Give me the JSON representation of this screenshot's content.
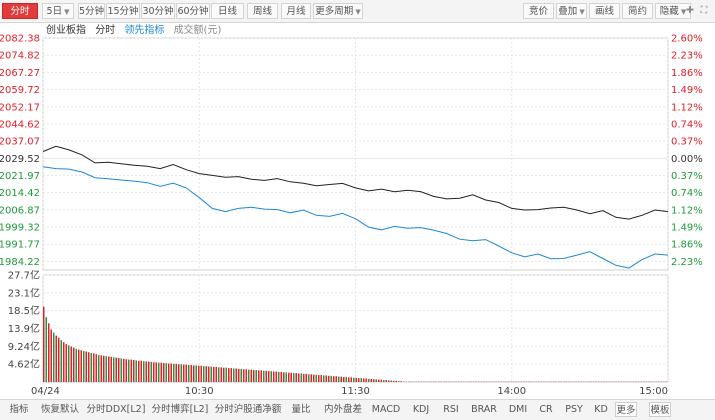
{
  "toolbar": {
    "left": [
      {
        "label": "分时",
        "active": true
      },
      {
        "label": "5日",
        "dropdown": true
      },
      {
        "label": "5分钟"
      },
      {
        "label": "15分钟"
      },
      {
        "label": "30分钟"
      },
      {
        "label": "60分钟"
      },
      {
        "label": "日线"
      },
      {
        "label": "周线"
      },
      {
        "label": "月线"
      },
      {
        "label": "更多周期",
        "dropdown": true
      }
    ],
    "right": [
      {
        "label": "竞价"
      },
      {
        "label": "叠加",
        "dropdown": true
      },
      {
        "label": "画线"
      },
      {
        "label": "简约"
      },
      {
        "label": "隐藏",
        "dropdown": true
      }
    ],
    "icons": [
      "expand-icon",
      "fullscreen-icon"
    ]
  },
  "legend": {
    "name": "创业板指",
    "mode": "分时",
    "lead": "领先指标",
    "volume": "成交额(元)"
  },
  "colors": {
    "up": "#e0202a",
    "down": "#1f9a3a",
    "neutral": "#333333",
    "price_line": "#222222",
    "lead_line": "#1e88d6",
    "grid": "#e6e6e6"
  },
  "chart_data": {
    "type": "line",
    "title": "创业板指",
    "prev_close": 2029.52,
    "y_ticks": [
      "2082.38",
      "2074.82",
      "2067.27",
      "2059.72",
      "2052.17",
      "2044.62",
      "2037.07",
      "2029.52",
      "2021.97",
      "2014.42",
      "2006.87",
      "1999.32",
      "1991.77",
      "1984.22"
    ],
    "pct_ticks": [
      "2.60%",
      "2.23%",
      "1.86%",
      "1.49%",
      "1.12%",
      "0.74%",
      "0.37%",
      "0.00%",
      "0.37%",
      "0.74%",
      "1.12%",
      "1.49%",
      "1.86%",
      "2.23%"
    ],
    "ylim": [
      1980.45,
      2082.38
    ],
    "x_ticks": [
      "04/24",
      "10:30",
      "11:30",
      "14:00",
      "15:00"
    ],
    "x": [
      0,
      5,
      10,
      15,
      20,
      25,
      30,
      35,
      40,
      45,
      50,
      55,
      60,
      65,
      70,
      75,
      80,
      85,
      90,
      95,
      100,
      105,
      110,
      115,
      120,
      125,
      130,
      135,
      140,
      145,
      150,
      155,
      160,
      165,
      170,
      175,
      180,
      185,
      190,
      195,
      200,
      205,
      210,
      215,
      220,
      225,
      230,
      235,
      240
    ],
    "series": [
      {
        "name": "创业板指",
        "values": [
          2032.5,
          2034.8,
          2033.2,
          2031.0,
          2027.5,
          2027.8,
          2027.1,
          2026.5,
          2026.0,
          2025.0,
          2026.8,
          2024.5,
          2022.8,
          2022.0,
          2021.2,
          2021.5,
          2020.3,
          2019.8,
          2020.6,
          2019.2,
          2018.6,
          2017.5,
          2018.0,
          2018.5,
          2016.5,
          2015.2,
          2016.0,
          2014.8,
          2015.5,
          2014.9,
          2012.8,
          2011.7,
          2012.0,
          2013.5,
          2011.2,
          2010.1,
          2007.5,
          2006.8,
          2007.0,
          2007.7,
          2008.0,
          2006.8,
          2005.2,
          2006.5,
          2003.6,
          2002.8,
          2004.5,
          2006.8,
          2006.1
        ]
      },
      {
        "name": "领先指标",
        "values": [
          2025.8,
          2025.0,
          2024.8,
          2023.5,
          2021.0,
          2020.5,
          2020.0,
          2019.5,
          2018.8,
          2017.2,
          2018.6,
          2016.5,
          2012.2,
          2007.5,
          2006.1,
          2007.5,
          2008.0,
          2007.2,
          2007.0,
          2005.6,
          2006.8,
          2004.5,
          2004.0,
          2005.3,
          2003.0,
          1999.3,
          1998.1,
          1999.6,
          1998.8,
          1999.1,
          1998.0,
          1996.5,
          1994.0,
          1993.3,
          1993.8,
          1991.0,
          1988.0,
          1986.2,
          1987.5,
          1985.4,
          1985.5,
          1987.0,
          1988.5,
          1985.5,
          1982.5,
          1981.3,
          1985.0,
          1987.5,
          1987.0
        ]
      }
    ],
    "volume": {
      "ylabel": "成交额(元)",
      "y_ticks": [
        "27.7亿",
        "23.1亿",
        "18.5亿",
        "13.9亿",
        "9.24亿",
        "4.62亿"
      ],
      "ylim": [
        0,
        27.7
      ],
      "unit": "亿",
      "values": [
        19.5,
        16.8,
        15.2,
        13.6,
        12.8,
        12.0,
        11.5,
        10.8,
        10.3,
        9.8,
        9.5,
        9.2,
        8.9,
        8.6,
        8.4,
        8.2,
        8.0,
        7.9,
        7.7,
        7.5,
        7.4,
        7.2,
        7.0,
        6.9,
        6.8,
        6.7,
        6.6,
        6.5,
        6.4,
        6.3,
        6.2,
        6.1,
        6.0,
        5.9,
        5.8,
        5.8,
        5.7,
        5.6,
        5.5,
        5.5,
        5.4,
        5.3,
        5.3,
        5.2,
        5.1,
        5.1,
        5.0,
        5.0,
        4.9,
        4.9,
        4.8,
        4.8,
        4.7,
        4.7,
        4.6,
        4.6,
        4.5,
        4.5,
        4.4,
        4.4,
        4.3,
        4.3,
        4.2,
        4.2,
        4.1,
        4.1,
        4.0,
        4.0,
        3.9,
        3.9,
        3.8,
        3.8,
        3.7,
        3.7,
        3.6,
        3.6,
        3.5,
        3.5,
        3.4,
        3.4,
        3.3,
        3.3,
        3.2,
        3.2,
        3.1,
        3.1,
        3.0,
        3.0,
        2.9,
        2.9,
        2.8,
        2.8,
        2.7,
        2.7,
        2.6,
        2.6,
        2.5,
        2.5,
        2.4,
        2.4,
        2.3,
        2.3,
        2.2,
        2.2,
        2.1,
        2.1,
        2.0,
        2.0,
        1.9,
        1.9,
        1.8,
        1.8,
        1.7,
        1.7,
        1.6,
        1.6,
        1.5,
        1.5,
        1.4,
        1.4,
        1.3,
        1.3,
        1.2,
        1.2,
        1.1,
        1.1,
        1.0,
        1.0,
        0.9,
        0.9,
        0.8,
        0.8,
        0.7,
        0.7,
        0.6,
        0.6,
        0.5,
        0.5,
        0.4,
        0.4,
        0.3,
        0.3,
        0.2,
        0.2,
        0.1,
        0.1,
        0.1,
        0.1,
        0.1,
        0.1,
        0.1,
        0.1,
        0.1,
        0.1,
        0.1,
        0.1,
        0.1,
        0.1,
        0.1,
        0.1,
        0.1,
        0.1,
        0.1,
        0.1,
        0.1,
        0.1,
        0.1,
        0.1,
        0.1,
        0.1,
        0.1,
        0.1,
        0.1,
        0.1,
        0.1,
        0.1,
        0.1,
        0.1,
        0.1,
        0.1,
        0.1,
        0.1,
        0.1,
        0.1,
        0.1,
        0.1,
        0.1,
        0.1,
        0.1,
        0.1,
        0.1,
        0.1,
        0.1,
        0.1,
        0.1,
        0.1,
        0.1,
        0.1,
        0.1,
        0.1,
        0.1,
        0.1,
        0.1,
        0.1,
        0.1,
        0.1,
        0.1,
        0.1,
        0.1,
        0.1,
        0.1,
        0.1,
        0.1,
        0.1,
        0.1,
        0.1,
        0.1,
        0.1,
        0.1,
        0.1,
        0.1,
        0.1,
        0.1,
        0.1,
        0.1,
        0.1,
        0.1,
        0.1,
        0.1,
        0.1,
        0.1,
        0.1,
        0.1,
        0.1,
        0.1,
        0.1,
        0.1,
        0.1,
        0.1,
        0.1,
        0.1,
        0.1,
        0.1,
        0.1,
        0.1,
        0.1,
        0.1,
        0.1,
        0.1,
        0.1
      ]
    }
  },
  "bottom_tabs": [
    {
      "label": "指标"
    },
    {
      "label": "恢复默认"
    },
    {
      "label": "分时DDX[L2]"
    },
    {
      "label": "分时博弈[L2]"
    },
    {
      "label": "分时沪股通净额"
    },
    {
      "label": "量比"
    },
    {
      "label": "内外盘差"
    },
    {
      "label": "MACD"
    },
    {
      "label": "KDJ"
    },
    {
      "label": "RSI"
    },
    {
      "label": "BRAR"
    },
    {
      "label": "DMI"
    },
    {
      "label": "CR"
    },
    {
      "label": "PSY"
    },
    {
      "label": "KD"
    },
    {
      "label": "更多",
      "boxed": true
    },
    {
      "label": "模板",
      "boxed": true
    }
  ]
}
